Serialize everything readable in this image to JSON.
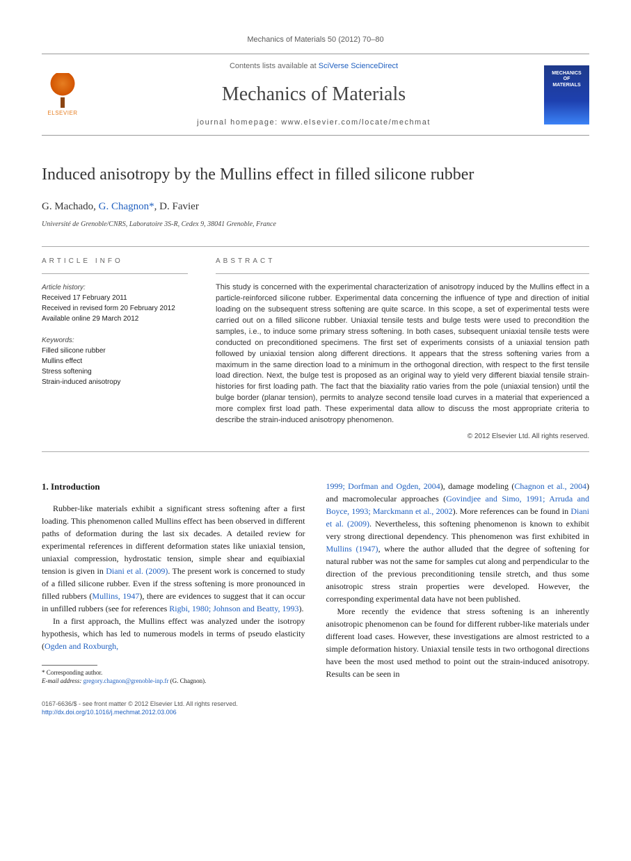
{
  "header": {
    "citation": "Mechanics of Materials 50 (2012) 70–80",
    "contents_prefix": "Contents lists available at ",
    "contents_link": "SciVerse ScienceDirect",
    "journal_title": "Mechanics of Materials",
    "homepage_prefix": "journal homepage: ",
    "homepage_url": "www.elsevier.com/locate/mechmat",
    "elsevier_label": "ELSEVIER",
    "cover_line1": "MECHANICS",
    "cover_line2": "OF",
    "cover_line3": "MATERIALS"
  },
  "article": {
    "title": "Induced anisotropy by the Mullins effect in filled silicone rubber",
    "authors_html": "G. Machado, ",
    "author_corresponding": "G. Chagnon",
    "corresponding_marker": "*",
    "authors_tail": ", D. Favier",
    "affiliation": "Université de Grenoble/CNRS, Laboratoire 3S-R, Cedex 9, 38041 Grenoble, France"
  },
  "info": {
    "label": "ARTICLE INFO",
    "history_label": "Article history:",
    "received": "Received 17 February 2011",
    "revised": "Received in revised form 20 February 2012",
    "online": "Available online 29 March 2012",
    "keywords_label": "Keywords:",
    "kw1": "Filled silicone rubber",
    "kw2": "Mullins effect",
    "kw3": "Stress softening",
    "kw4": "Strain-induced anisotropy"
  },
  "abstract": {
    "label": "ABSTRACT",
    "text": "This study is concerned with the experimental characterization of anisotropy induced by the Mullins effect in a particle-reinforced silicone rubber. Experimental data concerning the influence of type and direction of initial loading on the subsequent stress softening are quite scarce. In this scope, a set of experimental tests were carried out on a filled silicone rubber. Uniaxial tensile tests and bulge tests were used to precondition the samples, i.e., to induce some primary stress softening. In both cases, subsequent uniaxial tensile tests were conducted on preconditioned specimens. The first set of experiments consists of a uniaxial tension path followed by uniaxial tension along different directions. It appears that the stress softening varies from a maximum in the same direction load to a minimum in the orthogonal direction, with respect to the first tensile load direction. Next, the bulge test is proposed as an original way to yield very different biaxial tensile strain-histories for first loading path. The fact that the biaxiality ratio varies from the pole (uniaxial tension) until the bulge border (planar tension), permits to analyze second tensile load curves in a material that experienced a more complex first load path. These experimental data allow to discuss the most appropriate criteria to describe the strain-induced anisotropy phenomenon.",
    "copyright": "© 2012 Elsevier Ltd. All rights reserved."
  },
  "body": {
    "intro_heading": "1. Introduction",
    "col1_p1a": "Rubber-like materials exhibit a significant stress softening after a first loading. This phenomenon called Mullins effect has been observed in different paths of deformation during the last six decades. A detailed review for experimental references in different deformation states like uniaxial tension, uniaxial compression, hydrostatic tension, simple shear and equibiaxial tension is given in ",
    "col1_ref1": "Diani et al. (2009)",
    "col1_p1b": ". The present work is concerned to study of a filled silicone rubber. Even if the stress softening is more pronounced in filled rubbers (",
    "col1_ref2": "Mullins, 1947",
    "col1_p1c": "), there are evidences to suggest that it can occur in unfilled rubbers (see for references ",
    "col1_ref3": "Rigbi, 1980; Johnson and Beatty, 1993",
    "col1_p1d": ").",
    "col1_p2a": "In a first approach, the Mullins effect was analyzed under the isotropy hypothesis, which has led to numerous models in terms of pseudo elasticity (",
    "col1_ref4": "Ogden and Roxburgh,",
    "col2_ref1": "1999; Dorfman and Ogden, 2004",
    "col2_p1a": "), damage modeling (",
    "col2_ref2": "Chagnon et al., 2004",
    "col2_p1b": ") and macromolecular approaches (",
    "col2_ref3": "Govindjee and Simo, 1991; Arruda and Boyce, 1993; Marckmann et al., 2002",
    "col2_p1c": "). More references can be found in ",
    "col2_ref4": "Diani et al. (2009)",
    "col2_p1d": ". Nevertheless, this softening phenomenon is known to exhibit very strong directional dependency. This phenomenon was first exhibited in ",
    "col2_ref5": "Mullins (1947)",
    "col2_p1e": ", where the author alluded that the degree of softening for natural rubber was not the same for samples cut along and perpendicular to the direction of the previous preconditioning tensile stretch, and thus some anisotropic stress strain properties were developed. However, the corresponding experimental data have not been published.",
    "col2_p2": "More recently the evidence that stress softening is an inherently anisotropic phenomenon can be found for different rubber-like materials under different load cases. However, these investigations are almost restricted to a simple deformation history. Uniaxial tensile tests in two orthogonal directions have been the most used method to point out the strain-induced anisotropy. Results can be seen in"
  },
  "footnote": {
    "corresponding": "* Corresponding author.",
    "email_label": "E-mail address: ",
    "email": "gregory.chagnon@grenoble-inp.fr",
    "email_tail": " (G. Chagnon)."
  },
  "bottom": {
    "issn_line": "0167-6636/$ - see front matter © 2012 Elsevier Ltd. All rights reserved.",
    "doi": "http://dx.doi.org/10.1016/j.mechmat.2012.03.006"
  },
  "colors": {
    "link": "#2060c0",
    "elsevier_orange": "#e67e22",
    "cover_blue": "#1e3a8a"
  }
}
